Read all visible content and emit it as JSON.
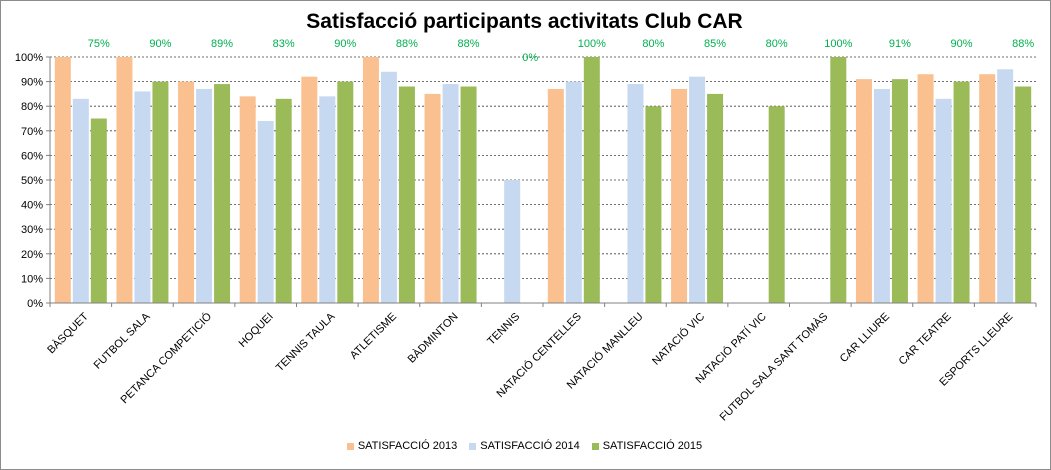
{
  "chart_data": {
    "type": "bar",
    "title": "Satisfacció participants activitats Club CAR",
    "categories": [
      "BÀSQUET",
      "FUTBOL SALA",
      "PETANCA COMPETICIÓ",
      "HOQUEI",
      "TENNIS TAULA",
      "ATLETISME",
      "BÀDMINTON",
      "TENNIS",
      "NATACIÓ CENTELLES",
      "NATACIÓ MANLLEU",
      "NATACIÓ VIC",
      "NATACIÓ PATÍ VIC",
      "FUTBOL SALA SANT TOMÀS",
      "CAR LLIURE",
      "CAR TEATRE",
      "ESPORTS LLEURE"
    ],
    "series": [
      {
        "name": "SATISFACCIÓ 2013",
        "color": "#fac090",
        "values": [
          100,
          100,
          90,
          84,
          92,
          100,
          85,
          null,
          87,
          null,
          87,
          null,
          null,
          91,
          93,
          93
        ]
      },
      {
        "name": "SATISFACCIÓ 2014",
        "color": "#c6d9f1",
        "values": [
          83,
          86,
          87,
          74,
          84,
          94,
          89,
          50,
          90,
          89,
          92,
          null,
          null,
          87,
          83,
          95
        ]
      },
      {
        "name": "SATISFACCIÓ 2015",
        "color": "#9bbb59",
        "values": [
          75,
          90,
          89,
          83,
          90,
          88,
          88,
          0,
          100,
          80,
          85,
          80,
          100,
          91,
          90,
          88
        ]
      }
    ],
    "data_labels": [
      "75%",
      "90%",
      "89%",
      "83%",
      "90%",
      "88%",
      "88%",
      "0%",
      "100%",
      "80%",
      "85%",
      "80%",
      "100%",
      "91%",
      "90%",
      "88%"
    ],
    "data_label_color": "#00b050",
    "ylim": [
      0,
      100
    ],
    "yticks": [
      "0%",
      "10%",
      "20%",
      "30%",
      "40%",
      "50%",
      "60%",
      "70%",
      "80%",
      "90%",
      "100%"
    ],
    "grid": true,
    "legend_position": "bottom"
  }
}
